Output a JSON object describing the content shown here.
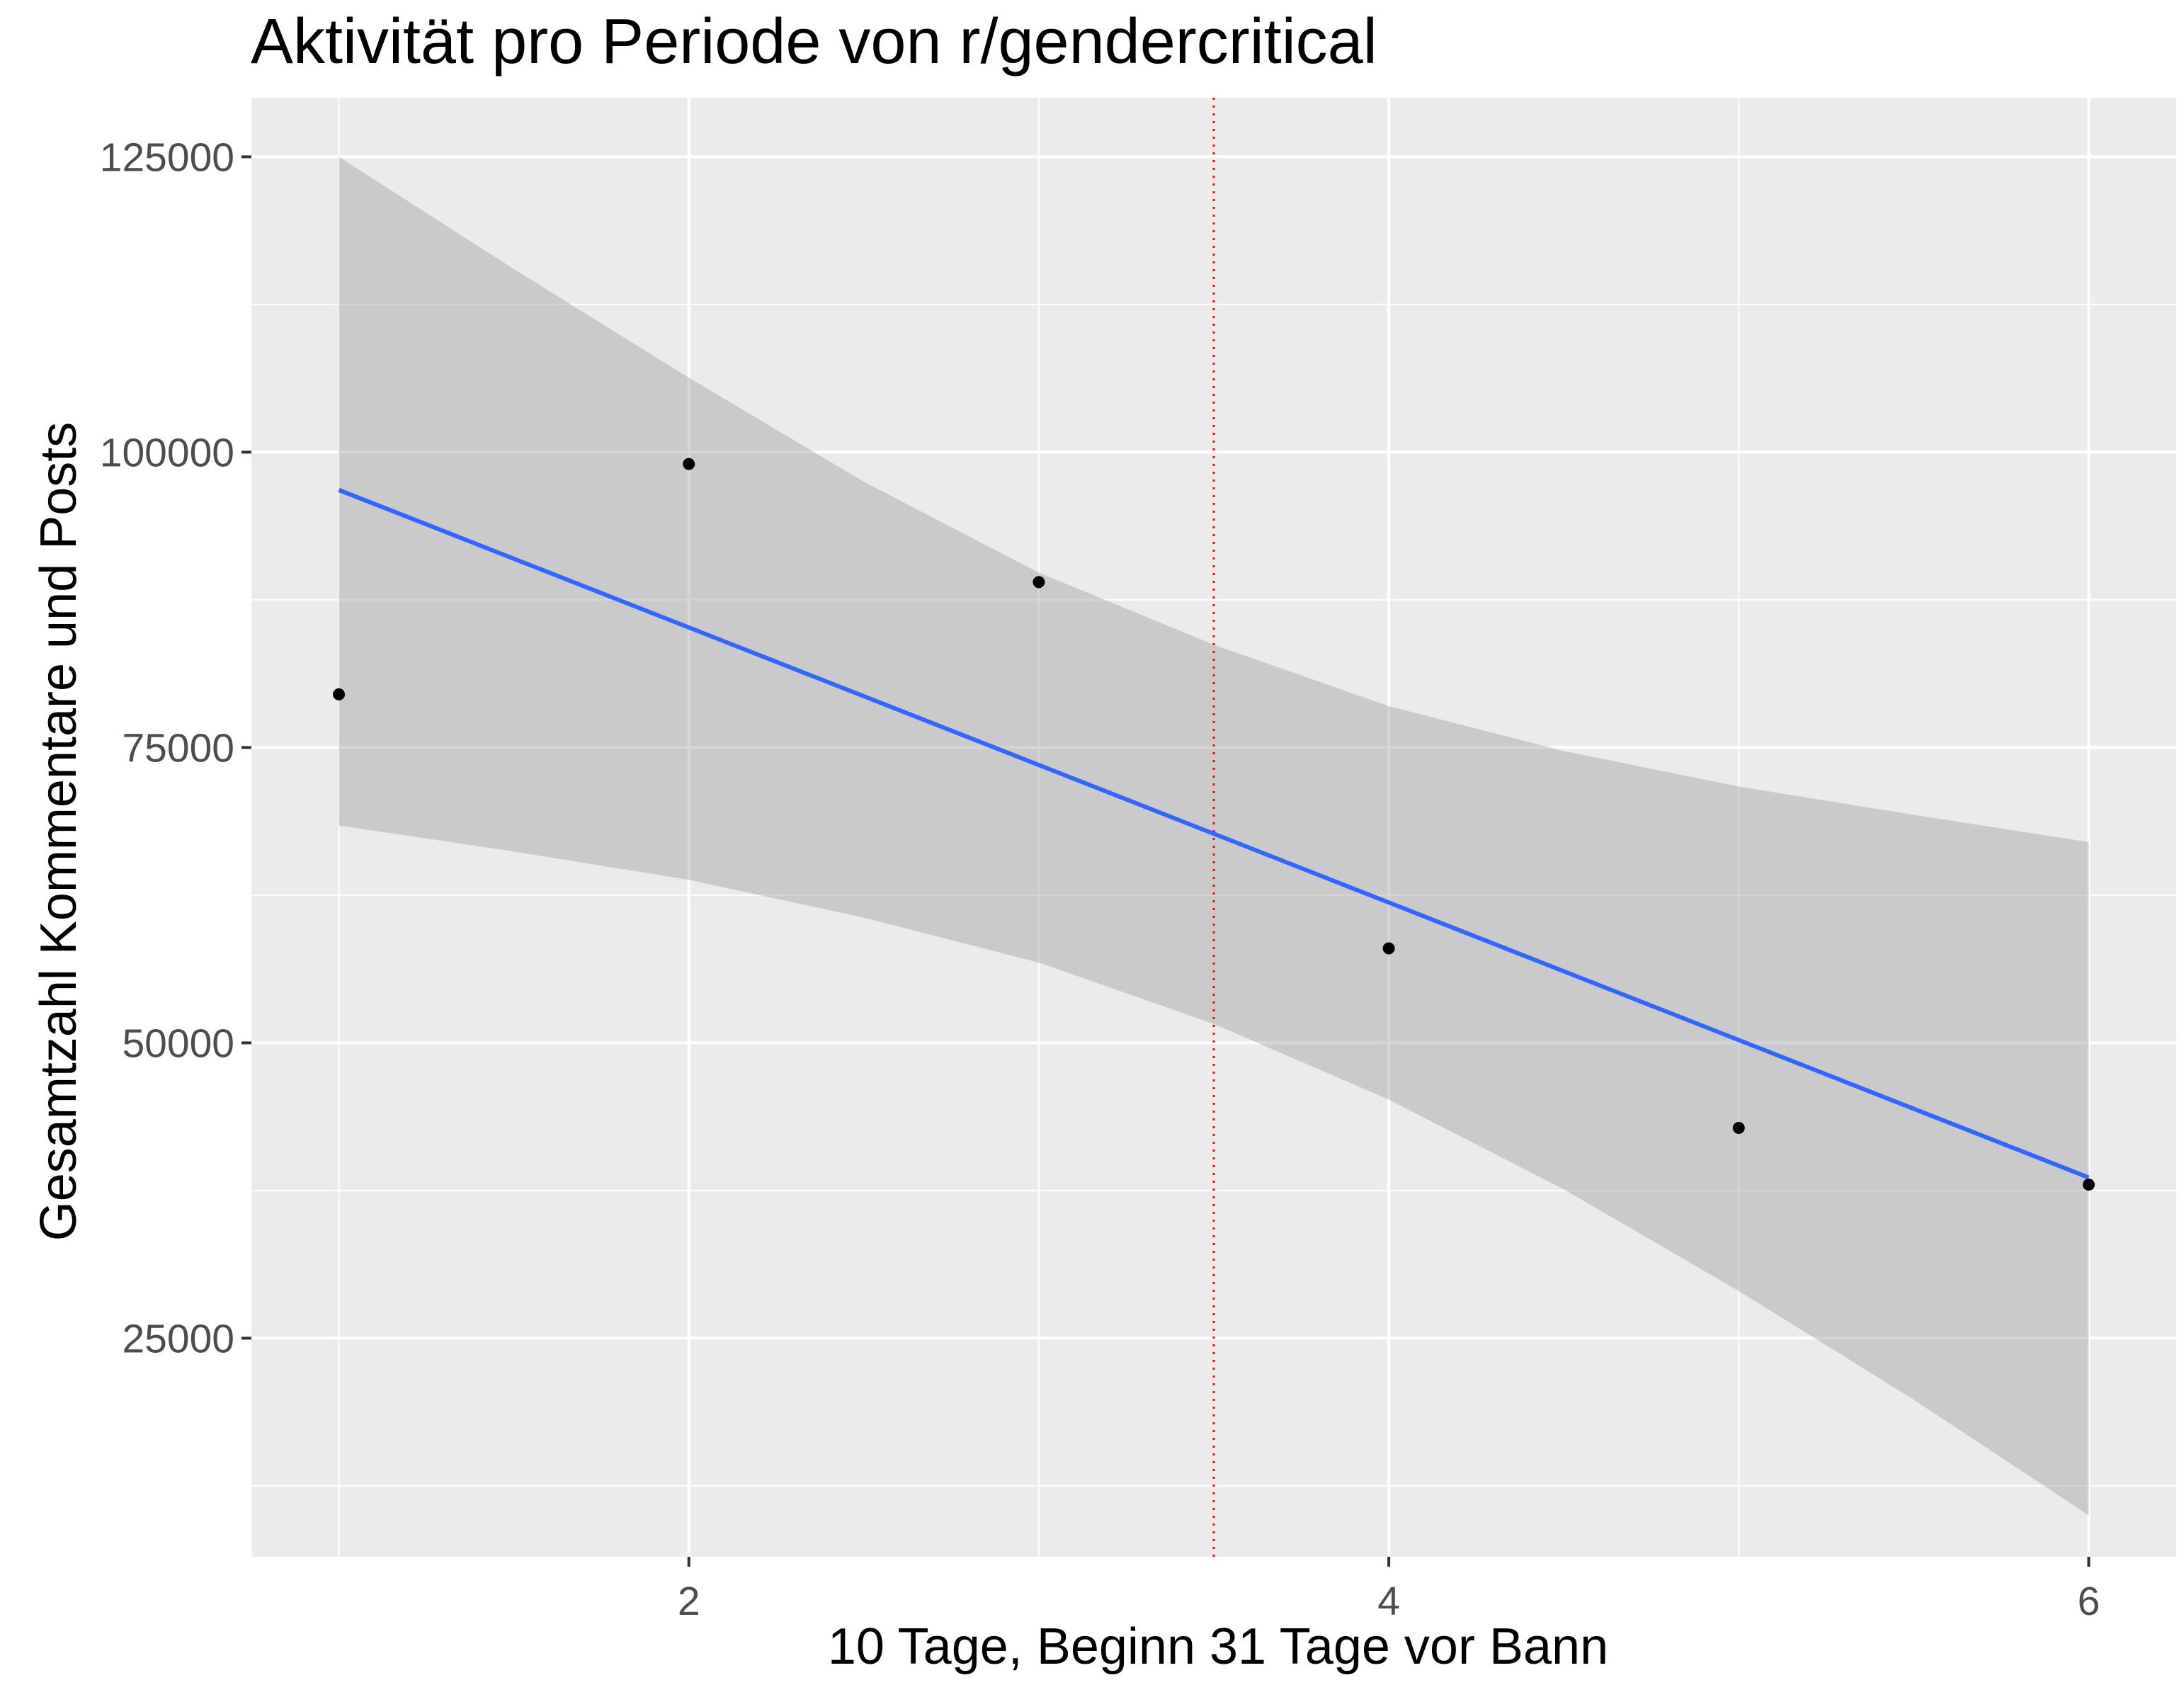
{
  "chart_data": {
    "type": "scatter",
    "title": "Aktivität pro Periode von r/gendercritical",
    "xlabel": "10 Tage, Beginn 31 Tage vor Bann",
    "ylabel": "Gesamtzahl Kommentare und Posts",
    "xlim": [
      0.75,
      6.25
    ],
    "ylim": [
      6500,
      130000
    ],
    "x_ticks": [
      2,
      4,
      6
    ],
    "y_ticks": [
      25000,
      50000,
      75000,
      100000,
      125000
    ],
    "x_tick_labels": [
      "2",
      "4",
      "6"
    ],
    "y_tick_labels": [
      "25000",
      "50000",
      "75000",
      "100000",
      "125000"
    ],
    "x_minor_breaks": [
      1,
      3,
      5
    ],
    "y_minor_breaks": [
      12500,
      37500,
      62500,
      87500,
      112500
    ],
    "grid": true,
    "points": {
      "x": [
        1,
        2,
        3,
        4,
        5,
        6
      ],
      "y": [
        79500,
        99000,
        89000,
        58000,
        42800,
        38000
      ],
      "color": "#000000"
    },
    "series": [
      {
        "kind": "regression-line",
        "x": [
          1,
          6
        ],
        "y": [
          96800,
          38600
        ],
        "color": "#3366FF"
      },
      {
        "kind": "confidence-band",
        "x": [
          1,
          1.5,
          2,
          2.5,
          3,
          3.5,
          4,
          4.5,
          5,
          5.5,
          6
        ],
        "lower": [
          68400,
          66200,
          63800,
          60600,
          56800,
          51600,
          45200,
          37600,
          29000,
          19800,
          10000
        ],
        "upper": [
          125000,
          115500,
          106300,
          97500,
          89800,
          83700,
          78500,
          74700,
          71700,
          69300,
          67000
        ],
        "color": "#999999"
      }
    ],
    "vline": {
      "x": 3.5,
      "color": "#FF0000",
      "style": "dotted"
    }
  },
  "colors": {
    "panel_background": "#EBEBEB",
    "grid_major": "#FFFFFF",
    "axis_text": "#4D4D4D",
    "tick_mark": "#333333"
  }
}
